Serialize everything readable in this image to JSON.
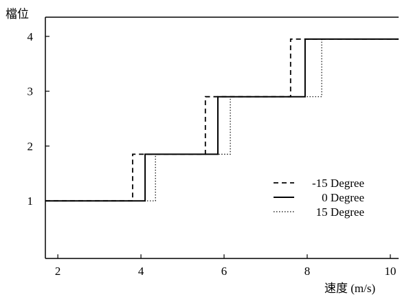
{
  "chart_data": {
    "type": "line",
    "xlabel": "速度 (m/s)",
    "ylabel": "檔位",
    "xlim": [
      1.7,
      10.2
    ],
    "ylim": [
      -0.05,
      4.35
    ],
    "x_ticks": [
      2,
      4,
      6,
      8,
      10
    ],
    "x_tick_labels": [
      "2",
      "4",
      "6",
      "8",
      "10"
    ],
    "y_ticks": [
      1,
      2,
      3,
      4
    ],
    "y_tick_labels": [
      "1",
      "2",
      "3",
      "4"
    ],
    "grid": false,
    "legend_position": "right",
    "series": [
      {
        "name": "-15 Degree",
        "line_style": "dashed",
        "x": [
          1.7,
          3.8,
          3.8,
          5.55,
          5.55,
          7.6,
          7.6,
          10.2
        ],
        "y": [
          1,
          1,
          1.85,
          1.85,
          2.9,
          2.9,
          3.95,
          3.95
        ]
      },
      {
        "name": "0 Degree",
        "line_style": "solid",
        "x": [
          1.7,
          4.1,
          4.1,
          5.85,
          5.85,
          7.95,
          7.95,
          10.2
        ],
        "y": [
          1,
          1,
          1.85,
          1.85,
          2.9,
          2.9,
          3.95,
          3.95
        ]
      },
      {
        "name": "15 Degree",
        "line_style": "dotted",
        "x": [
          1.7,
          4.35,
          4.35,
          6.15,
          6.15,
          8.35,
          8.35,
          10.2
        ],
        "y": [
          1,
          1,
          1.85,
          1.85,
          2.9,
          2.9,
          3.95,
          3.95
        ]
      }
    ]
  }
}
